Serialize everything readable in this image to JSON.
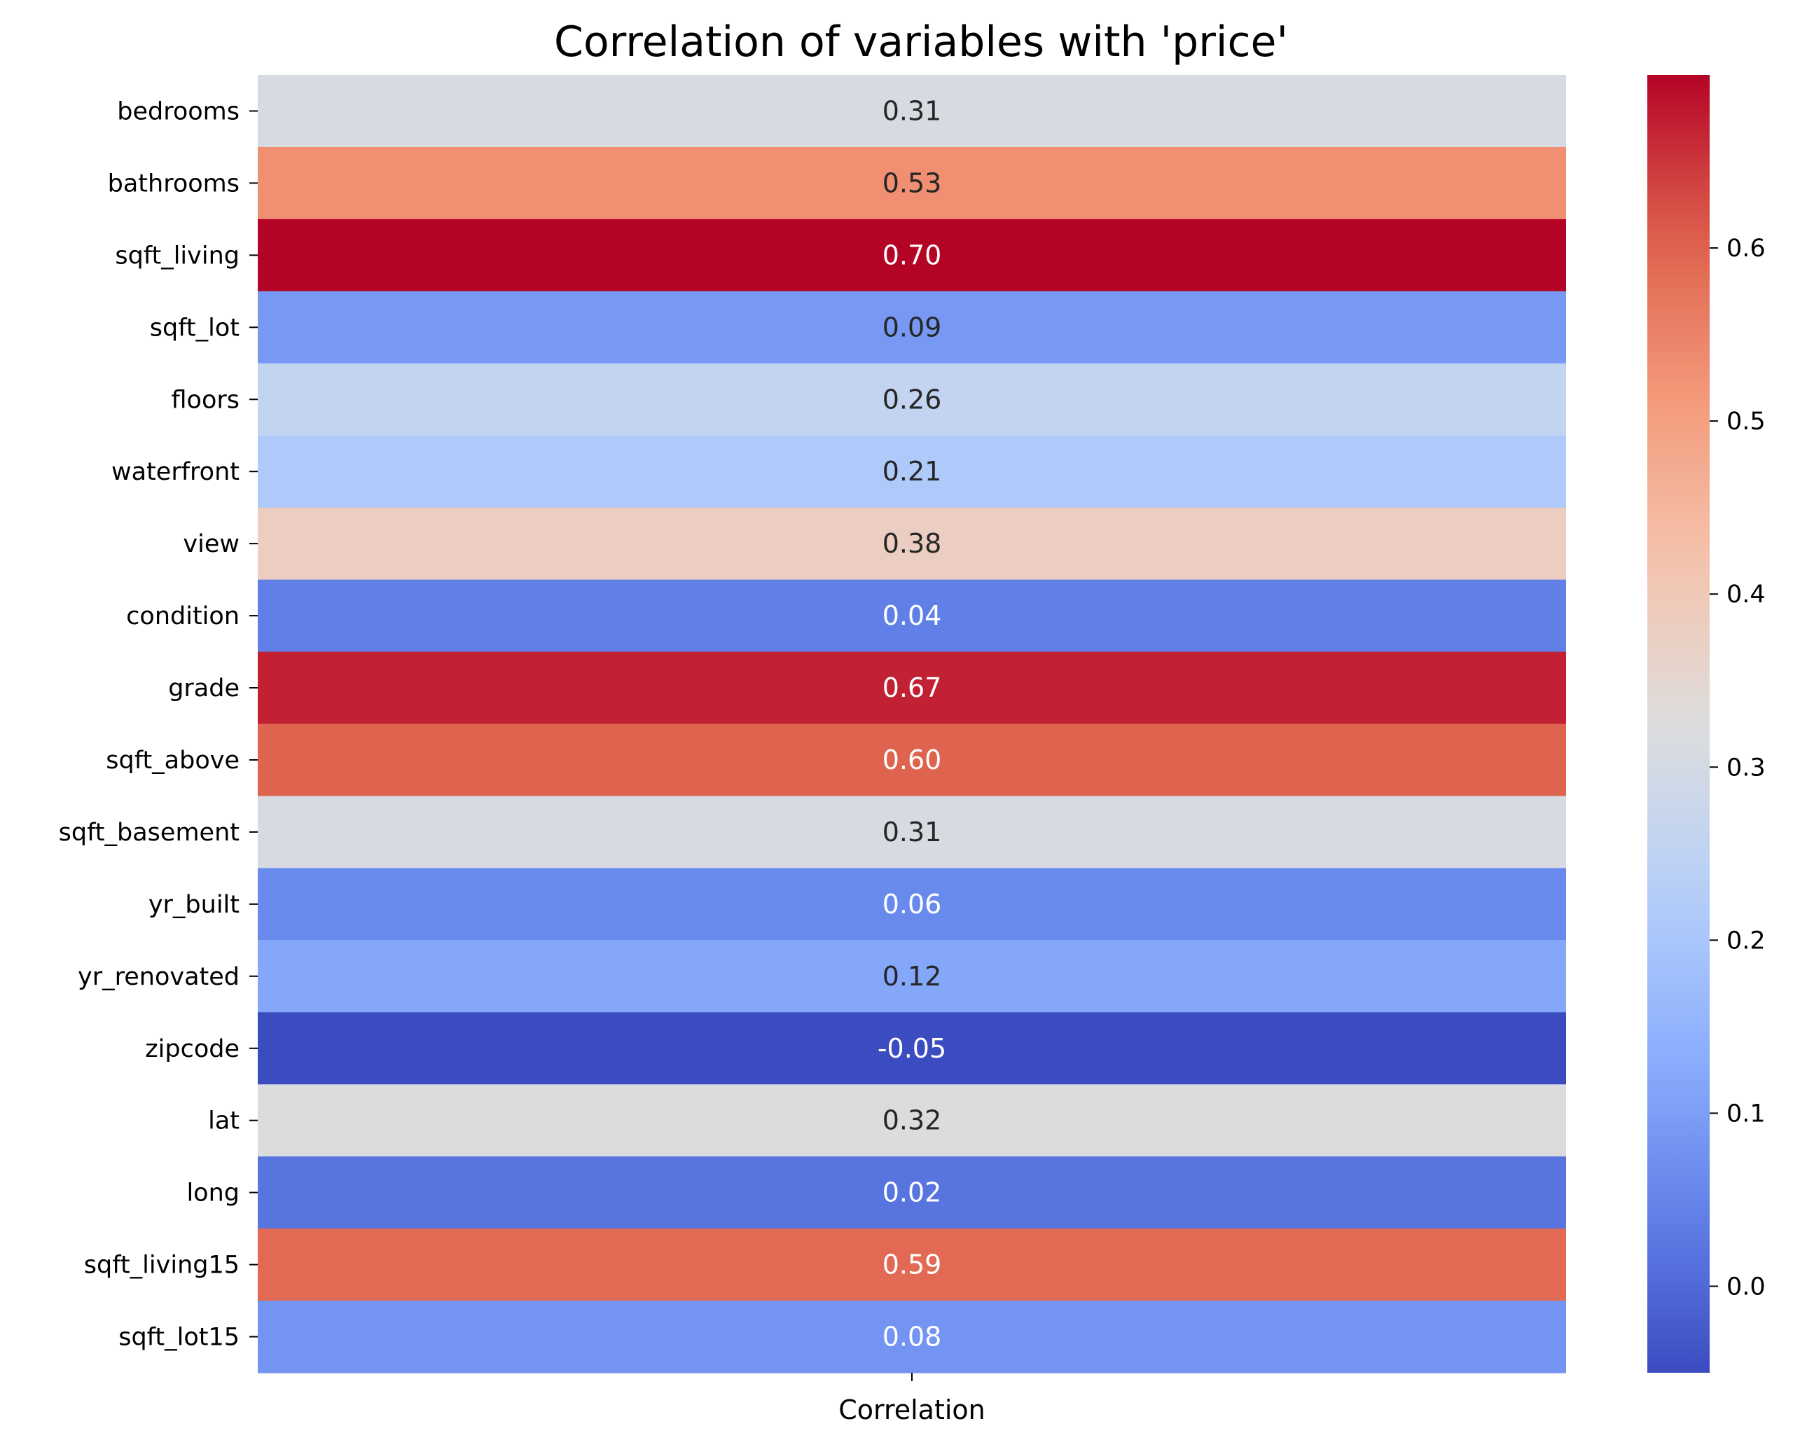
{
  "chart_data": {
    "type": "heatmap",
    "title": "Correlation of variables with 'price'",
    "xlabel": "",
    "ylabel": "",
    "columns": [
      "Correlation"
    ],
    "rows": [
      "bedrooms",
      "bathrooms",
      "sqft_living",
      "sqft_lot",
      "floors",
      "waterfront",
      "view",
      "condition",
      "grade",
      "sqft_above",
      "sqft_basement",
      "yr_built",
      "yr_renovated",
      "zipcode",
      "lat",
      "long",
      "sqft_living15",
      "sqft_lot15"
    ],
    "values": [
      0.31,
      0.53,
      0.7,
      0.09,
      0.26,
      0.21,
      0.38,
      0.04,
      0.67,
      0.6,
      0.31,
      0.06,
      0.12,
      -0.05,
      0.32,
      0.02,
      0.59,
      0.08
    ],
    "value_labels": [
      "0.31",
      "0.53",
      "0.70",
      "0.09",
      "0.26",
      "0.21",
      "0.38",
      "0.04",
      "0.67",
      "0.60",
      "0.31",
      "0.06",
      "0.12",
      "-0.05",
      "0.32",
      "0.02",
      "0.59",
      "0.08"
    ],
    "colormap": "coolwarm",
    "colorbar": {
      "range": [
        -0.05,
        0.7
      ],
      "ticks": [
        0.0,
        0.1,
        0.2,
        0.3,
        0.4,
        0.5,
        0.6
      ],
      "tick_labels": [
        "0.0",
        "0.1",
        "0.2",
        "0.3",
        "0.4",
        "0.5",
        "0.6"
      ]
    },
    "grid": false,
    "legend": "colorbar right"
  }
}
